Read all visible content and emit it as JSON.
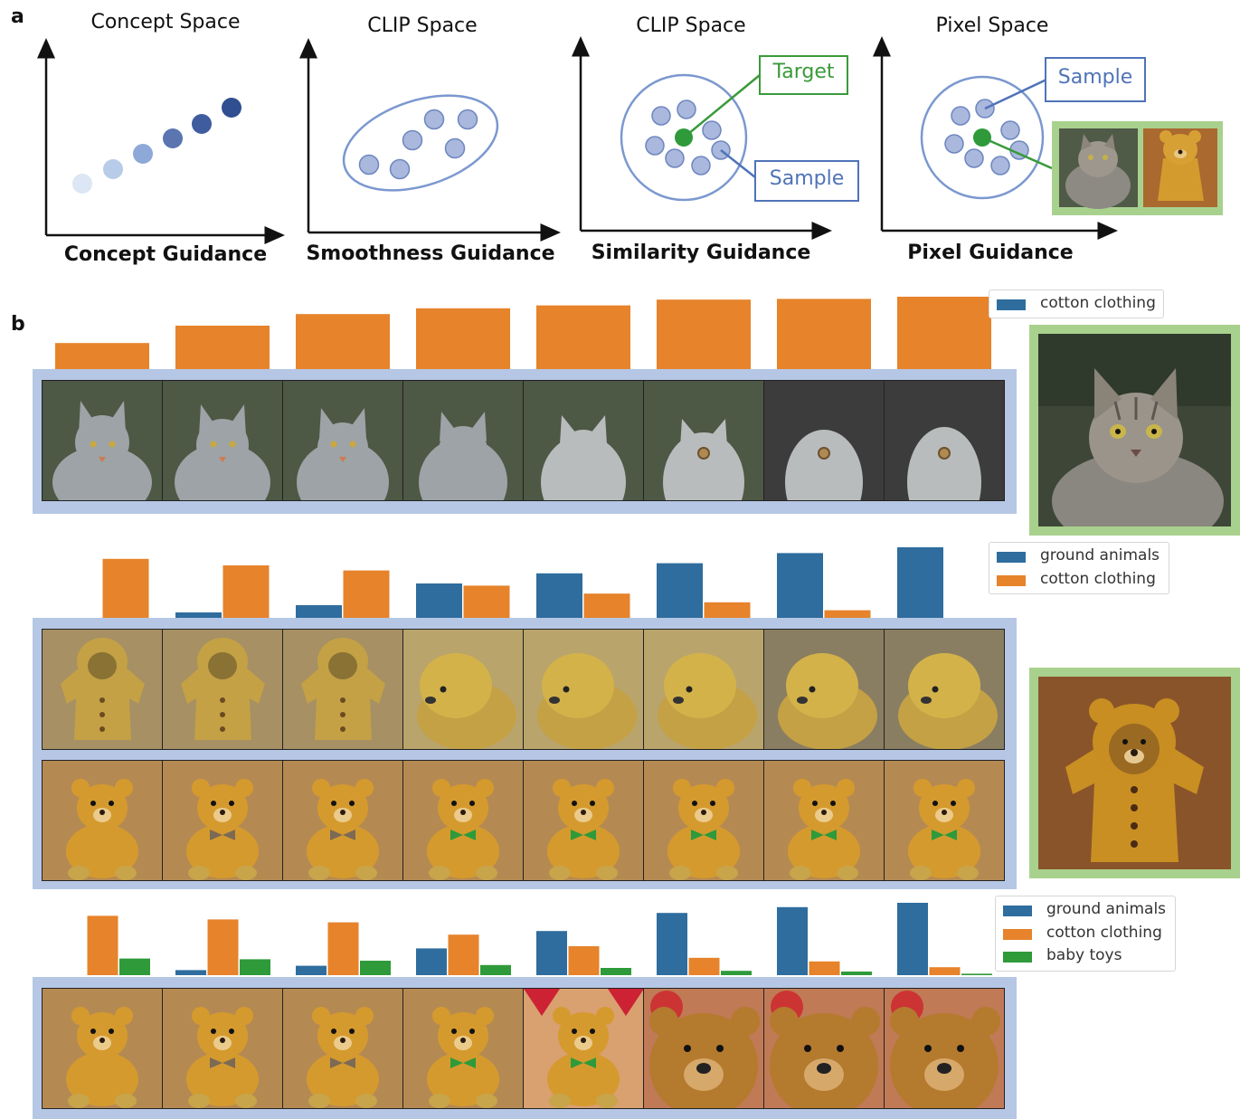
{
  "panel_a": {
    "letter": "a",
    "plots": [
      {
        "title": "Concept Space",
        "guidance": "Concept Guidance"
      },
      {
        "title": "CLIP Space",
        "guidance": "Smoothness Guidance"
      },
      {
        "title": "CLIP Space",
        "guidance": "Similarity Guidance",
        "target_label": "Target",
        "sample_label": "Sample"
      },
      {
        "title": "Pixel Space",
        "guidance": "Pixel Guidance",
        "sample_label": "Sample"
      }
    ]
  },
  "panel_b": {
    "letter": "b",
    "colors": {
      "ground animals": "#2e6d9e",
      "cotton clothing": "#e6832b",
      "baby toys": "#2e9a3a",
      "strip": "#b6c7e5",
      "frame": "#a9d18e"
    },
    "row1": {
      "legend": [
        "cotton clothing"
      ],
      "chart_data": {
        "type": "bar",
        "series": [
          {
            "name": "cotton clothing",
            "values": [
              0.36,
              0.6,
              0.76,
              0.84,
              0.88,
              0.96,
              0.97,
              1.0
            ]
          }
        ]
      }
    },
    "row2": {
      "legend": [
        "ground animals",
        "cotton clothing"
      ],
      "chart_data": {
        "type": "bar",
        "series": [
          {
            "name": "ground animals",
            "values": [
              0.0,
              0.1,
              0.2,
              0.5,
              0.64,
              0.78,
              0.92,
              1.0
            ]
          },
          {
            "name": "cotton clothing",
            "values": [
              0.84,
              0.75,
              0.68,
              0.47,
              0.36,
              0.24,
              0.13,
              0.0
            ]
          }
        ]
      }
    },
    "row3": {
      "legend": [
        "ground animals",
        "cotton clothing",
        "baby toys"
      ],
      "chart_data": {
        "type": "bar",
        "series": [
          {
            "name": "ground animals",
            "values": [
              0.0,
              0.07,
              0.13,
              0.37,
              0.61,
              0.86,
              0.94,
              1.0
            ]
          },
          {
            "name": "cotton clothing",
            "values": [
              0.82,
              0.77,
              0.73,
              0.56,
              0.4,
              0.24,
              0.19,
              0.11
            ]
          },
          {
            "name": "baby toys",
            "values": [
              0.23,
              0.22,
              0.2,
              0.14,
              0.1,
              0.06,
              0.05,
              0.02
            ]
          }
        ]
      }
    }
  }
}
